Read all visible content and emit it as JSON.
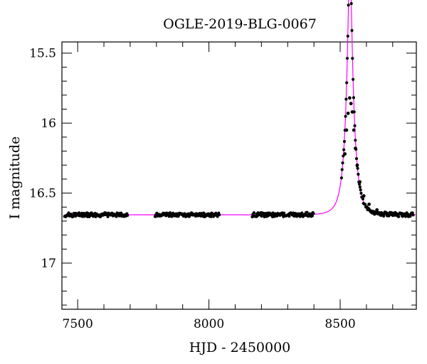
{
  "chart_data": {
    "type": "scatter",
    "title": "OGLE-2019-BLG-0067",
    "xlabel": "HJD - 2450000",
    "ylabel": "I magnitude",
    "xlim": [
      7440,
      8790
    ],
    "ylim": [
      17.33,
      15.42
    ],
    "y_inverted": true,
    "grid": false,
    "x_ticks": [
      7500,
      8000,
      8500
    ],
    "x_tick_labels": [
      "7500",
      "8000",
      "8500"
    ],
    "y_ticks": [
      15.5,
      16,
      16.5,
      17
    ],
    "y_tick_labels": [
      "15.5",
      "16",
      "16.5",
      "17"
    ],
    "baseline_mag": 16.655,
    "series": [
      {
        "kind": "points",
        "color": "#000000",
        "segments": [
          {
            "x_start": 7450,
            "x_end": 7690
          },
          {
            "x_start": 7795,
            "x_end": 8040
          },
          {
            "x_start": 8165,
            "x_end": 8400
          },
          {
            "x_start": 8505,
            "x_end": 8780
          }
        ],
        "peak_points": [
          {
            "x": 8518,
            "y": 16.22
          },
          {
            "x": 8524,
            "y": 16.05
          },
          {
            "x": 8530,
            "y": 15.93
          },
          {
            "x": 8536,
            "y": 15.82
          },
          {
            "x": 8541,
            "y": 15.86
          },
          {
            "x": 8546,
            "y": 15.92
          },
          {
            "x": 8552,
            "y": 16.05
          },
          {
            "x": 8558,
            "y": 16.18
          },
          {
            "x": 8565,
            "y": 16.3
          },
          {
            "x": 8575,
            "y": 16.42
          },
          {
            "x": 8590,
            "y": 16.52
          },
          {
            "x": 8610,
            "y": 16.58
          },
          {
            "x": 8640,
            "y": 16.62
          }
        ]
      },
      {
        "kind": "model",
        "color": "#ff00ff",
        "t0": 8537,
        "tE": 30,
        "u0": 0.18
      }
    ]
  }
}
